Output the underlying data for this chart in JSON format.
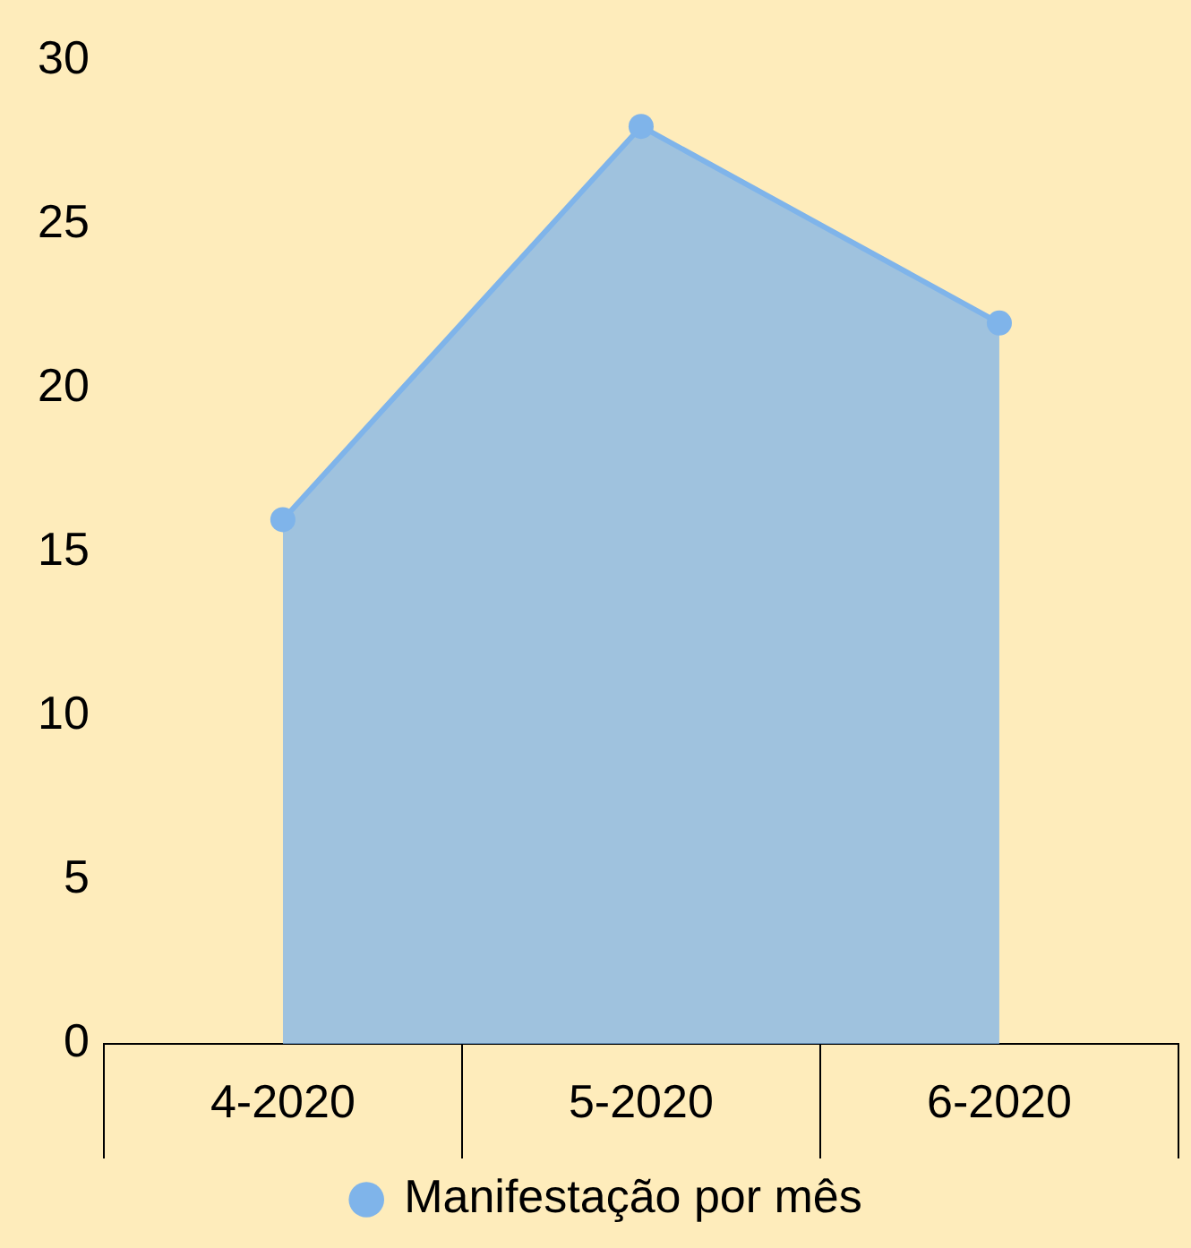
{
  "chart_data": {
    "type": "area",
    "categories": [
      "4-2020",
      "5-2020",
      "6-2020"
    ],
    "series": [
      {
        "name": "Manifestação por mês",
        "color": "#7fb4ea",
        "values": [
          16,
          28,
          22
        ]
      }
    ],
    "ylim": [
      0,
      30
    ],
    "yticks": [
      0,
      5,
      10,
      15,
      20,
      25,
      30
    ],
    "grid": false,
    "legend": "bottom",
    "marker": "circle"
  }
}
